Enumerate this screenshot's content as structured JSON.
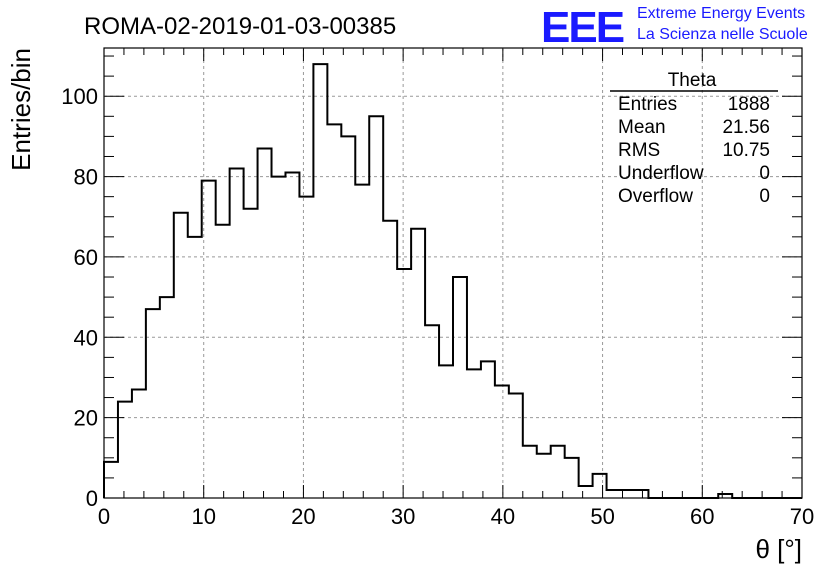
{
  "title": "ROMA-02-2019-01-03-00385",
  "logo": {
    "mark": "EEE",
    "line1": "Extreme Energy Events",
    "line2": "La Scienza nelle Scuole",
    "color": "#1a1aff"
  },
  "stats": {
    "name": "Theta",
    "rows": [
      {
        "label": "Entries",
        "value": "1888"
      },
      {
        "label": "Mean",
        "value": "21.56"
      },
      {
        "label": "RMS",
        "value": "10.75"
      },
      {
        "label": "Underflow",
        "value": "0"
      },
      {
        "label": "Overflow",
        "value": "0"
      }
    ]
  },
  "chart_data": {
    "type": "bar",
    "style": "step-histogram",
    "xlabel": "θ [°]",
    "ylabel": "Entries/bin",
    "xlim": [
      0,
      70
    ],
    "ylim": [
      0,
      112
    ],
    "grid": true,
    "x_ticks": [
      0,
      10,
      20,
      30,
      40,
      50,
      60,
      70
    ],
    "y_ticks": [
      0,
      20,
      40,
      60,
      80,
      100
    ],
    "bin_edges": [
      0,
      1.4,
      2.8,
      4.2,
      5.6,
      7,
      8.4,
      9.8,
      11.2,
      12.6,
      14,
      15.4,
      16.8,
      18.2,
      19.6,
      21,
      22.4,
      23.8,
      25.2,
      26.6,
      28,
      29.4,
      30.8,
      32.2,
      33.6,
      35,
      36.4,
      37.8,
      39.2,
      40.6,
      42,
      43.4,
      44.8,
      46.2,
      47.6,
      49,
      50.4,
      51.8,
      53.2,
      54.6,
      56,
      57.4,
      58.8,
      60.2,
      61.6,
      63,
      64.4,
      65.8,
      67.2,
      68.6,
      70
    ],
    "values": [
      9,
      24,
      27,
      47,
      50,
      71,
      65,
      79,
      68,
      82,
      72,
      87,
      80,
      81,
      75,
      108,
      93,
      90,
      78,
      95,
      69,
      57,
      67,
      43,
      33,
      55,
      32,
      34,
      28,
      26,
      13,
      11,
      13,
      10,
      3,
      6,
      2,
      2,
      2,
      0,
      0,
      0,
      0,
      0,
      1,
      0,
      0,
      0,
      0,
      0
    ]
  }
}
